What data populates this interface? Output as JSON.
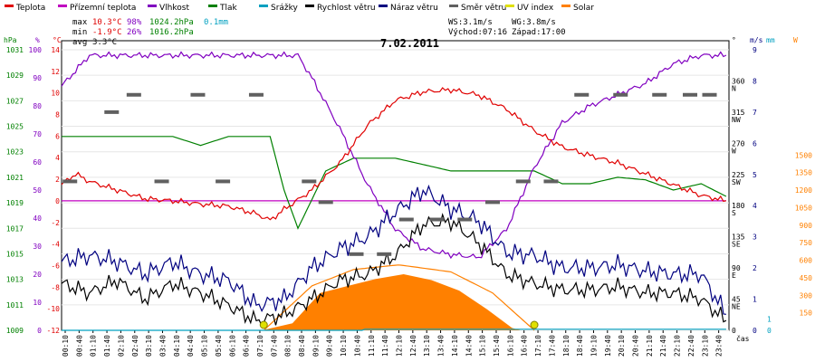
{
  "chart_data": {
    "type": "line",
    "title": "7.02.2011",
    "legend": [
      {
        "name": "Teplota",
        "color": "#e00000"
      },
      {
        "name": "Přízemní teplota",
        "color": "#c000c0"
      },
      {
        "name": "Vlhkost",
        "color": "#8000c0"
      },
      {
        "name": "Tlak",
        "color": "#008000"
      },
      {
        "name": "Srážky",
        "color": "#00a0c0"
      },
      {
        "name": "Rychlost větru",
        "color": "#000000"
      },
      {
        "name": "Náraz větru",
        "color": "#000080"
      },
      {
        "name": "Směr větru",
        "color": "#606060"
      },
      {
        "name": "UV index",
        "color": "#e0e000"
      },
      {
        "name": "Solar",
        "color": "#ff8000"
      }
    ],
    "stats": {
      "max": {
        "label": "max",
        "temp": "10.3°C",
        "hum": "98%",
        "press": "1024.2hPa",
        "rain": "0.1mm"
      },
      "min": {
        "label": "min",
        "temp": "-1.9°C",
        "hum": "26%",
        "press": "1016.2hPa"
      },
      "avg": {
        "label": "avg",
        "temp": "3.3°C"
      },
      "ws": "WS:3.1m/s",
      "wg": "WG:3.8m/s",
      "sunrise": "Východ:07:16",
      "sunset": "Západ:17:00"
    },
    "axes": {
      "hpa": {
        "label": "hPa",
        "ticks": [
          "1031",
          "1029",
          "1027",
          "1025",
          "1023",
          "1021",
          "1019",
          "1017",
          "1015",
          "1013",
          "1011",
          "1009"
        ]
      },
      "pct": {
        "label": "%",
        "ticks": [
          "100",
          "90",
          "80",
          "70",
          "60",
          "50",
          "40",
          "30",
          "20",
          "10",
          "0"
        ]
      },
      "degc": {
        "label": "°C",
        "ticks": [
          "14",
          "12",
          "10",
          "8",
          "6",
          "4",
          "2",
          "0",
          "-2",
          "-4",
          "-6",
          "-8",
          "-10",
          "-12"
        ]
      },
      "deg": {
        "label": "°",
        "ticks": [
          "360",
          "315",
          "270",
          "225",
          "180",
          "135",
          "90",
          "45",
          "0"
        ],
        "dirs": [
          "N",
          "NW",
          "W",
          "SW",
          "S",
          "SE",
          "E",
          "NE",
          ""
        ]
      },
      "ms": {
        "label": "m/s",
        "ticks": [
          "9",
          "8",
          "7",
          "6",
          "5",
          "4",
          "3",
          "2",
          "1",
          "0"
        ]
      },
      "mm": {
        "label": "mm",
        "ticks": [
          "1",
          "0"
        ]
      },
      "wm2": {
        "label": "W",
        "ticks": [
          "1500",
          "1350",
          "1200",
          "1050",
          "900",
          "750",
          "600",
          "450",
          "300",
          "150"
        ]
      },
      "x_label": "čas",
      "x_ticks": [
        "00:10",
        "00:40",
        "01:10",
        "01:40",
        "02:10",
        "02:40",
        "03:10",
        "03:40",
        "04:10",
        "04:40",
        "05:10",
        "05:40",
        "06:10",
        "06:40",
        "07:10",
        "07:40",
        "08:10",
        "08:40",
        "09:10",
        "09:40",
        "10:10",
        "10:40",
        "11:10",
        "11:40",
        "12:10",
        "12:40",
        "13:10",
        "13:40",
        "14:10",
        "14:40",
        "15:10",
        "15:40",
        "16:10",
        "16:40",
        "17:10",
        "17:40",
        "18:10",
        "18:40",
        "19:10",
        "19:40",
        "20:10",
        "20:40",
        "21:10",
        "21:40",
        "22:10",
        "22:40",
        "23:10",
        "23:40"
      ]
    },
    "series_keypoints": {
      "temperature_c": [
        [
          0,
          1.5
        ],
        [
          0.5,
          2.5
        ],
        [
          1,
          1.8
        ],
        [
          2,
          1
        ],
        [
          3,
          0.2
        ],
        [
          4,
          0
        ],
        [
          5,
          -0.3
        ],
        [
          6,
          -0.5
        ],
        [
          7,
          -1.2
        ],
        [
          7.5,
          -1.8
        ],
        [
          8,
          -0.8
        ],
        [
          9,
          1
        ],
        [
          10,
          3.5
        ],
        [
          11,
          7
        ],
        [
          12,
          9.3
        ],
        [
          13,
          10.1
        ],
        [
          14,
          10.3
        ],
        [
          15,
          9.8
        ],
        [
          16,
          8.5
        ],
        [
          17,
          6.5
        ],
        [
          18,
          5
        ],
        [
          19,
          4.2
        ],
        [
          20,
          3.5
        ],
        [
          21,
          2.5
        ],
        [
          22,
          1.5
        ],
        [
          23,
          0.5
        ],
        [
          23.9,
          0
        ]
      ],
      "ground_temp_c": [
        [
          0,
          0
        ],
        [
          23.9,
          0
        ]
      ],
      "humidity_pct": [
        [
          0,
          87
        ],
        [
          1,
          98
        ],
        [
          8.5,
          98
        ],
        [
          9,
          90
        ],
        [
          10,
          72
        ],
        [
          11,
          52
        ],
        [
          12,
          36
        ],
        [
          13,
          29
        ],
        [
          14,
          27
        ],
        [
          15,
          26
        ],
        [
          16,
          36
        ],
        [
          17,
          58
        ],
        [
          18,
          74
        ],
        [
          19,
          80
        ],
        [
          20,
          84
        ],
        [
          21,
          88
        ],
        [
          22,
          95
        ],
        [
          23,
          98
        ],
        [
          23.9,
          98
        ]
      ],
      "pressure_hpa": [
        [
          0,
          1024.2
        ],
        [
          4,
          1024.2
        ],
        [
          5,
          1023.5
        ],
        [
          6,
          1024.2
        ],
        [
          7.5,
          1024.2
        ],
        [
          8,
          1020
        ],
        [
          8.5,
          1017
        ],
        [
          9.5,
          1021.5
        ],
        [
          10.5,
          1022.5
        ],
        [
          12,
          1022.5
        ],
        [
          13,
          1022
        ],
        [
          14,
          1021.5
        ],
        [
          16,
          1021.5
        ],
        [
          17,
          1021.5
        ],
        [
          18,
          1020.5
        ],
        [
          19,
          1020.5
        ],
        [
          20,
          1021
        ],
        [
          21,
          1020.8
        ],
        [
          22,
          1020
        ],
        [
          23,
          1020.5
        ],
        [
          23.9,
          1019.5
        ]
      ],
      "rain_mm": [
        [
          0,
          0
        ],
        [
          10.8,
          0
        ],
        [
          10.8,
          0.1
        ],
        [
          23.9,
          0.1
        ]
      ],
      "wind_speed_ms": [
        [
          0,
          1.5
        ],
        [
          1,
          1.2
        ],
        [
          2,
          1.6
        ],
        [
          3,
          1
        ],
        [
          4,
          1.5
        ],
        [
          5,
          1.2
        ],
        [
          6,
          0.8
        ],
        [
          7,
          0.3
        ],
        [
          8,
          0.5
        ],
        [
          9,
          1
        ],
        [
          10,
          1.6
        ],
        [
          11,
          1.8
        ],
        [
          12,
          2.4
        ],
        [
          13,
          3.4
        ],
        [
          14,
          3.5
        ],
        [
          15,
          2.8
        ],
        [
          16,
          1.8
        ],
        [
          17,
          1.5
        ],
        [
          18,
          1.3
        ],
        [
          19,
          1.3
        ],
        [
          20,
          1.4
        ],
        [
          21,
          1.2
        ],
        [
          22,
          1.2
        ],
        [
          23,
          1
        ],
        [
          23.9,
          0.3
        ]
      ],
      "wind_gust_ms": [
        [
          0,
          2.2
        ],
        [
          1,
          2.4
        ],
        [
          2,
          2.2
        ],
        [
          3,
          1.8
        ],
        [
          4,
          2.2
        ],
        [
          5,
          1.8
        ],
        [
          6,
          1.6
        ],
        [
          7,
          0.8
        ],
        [
          8,
          1
        ],
        [
          9,
          2
        ],
        [
          10,
          2.6
        ],
        [
          11,
          3
        ],
        [
          12,
          3.8
        ],
        [
          13,
          4.5
        ],
        [
          14,
          3.9
        ],
        [
          15,
          3.5
        ],
        [
          16,
          2.5
        ],
        [
          17,
          2.4
        ],
        [
          18,
          2
        ],
        [
          19,
          2
        ],
        [
          20,
          2.1
        ],
        [
          21,
          1.9
        ],
        [
          22,
          1.8
        ],
        [
          23,
          1.8
        ],
        [
          23.9,
          0.5
        ]
      ],
      "wind_dir_deg": [
        [
          0.3,
          215
        ],
        [
          1.8,
          315
        ],
        [
          2.6,
          340
        ],
        [
          3.6,
          215
        ],
        [
          4.9,
          340
        ],
        [
          5.8,
          215
        ],
        [
          7,
          340
        ],
        [
          8.9,
          215
        ],
        [
          9.5,
          185
        ],
        [
          10.6,
          110
        ],
        [
          11.6,
          110
        ],
        [
          12.4,
          160
        ],
        [
          13.5,
          160
        ],
        [
          14.5,
          160
        ],
        [
          15.5,
          185
        ],
        [
          16.6,
          215
        ],
        [
          17.6,
          215
        ],
        [
          18.7,
          340
        ],
        [
          20.1,
          340
        ],
        [
          21.5,
          340
        ],
        [
          22.6,
          340
        ],
        [
          23.3,
          340
        ]
      ],
      "solar_wm2": [
        [
          7.2,
          0
        ],
        [
          8.3,
          60
        ],
        [
          9.3,
          320
        ],
        [
          10.3,
          380
        ],
        [
          11.3,
          440
        ],
        [
          12.3,
          480
        ],
        [
          13.3,
          430
        ],
        [
          14.3,
          340
        ],
        [
          15.3,
          180
        ],
        [
          16.2,
          20
        ],
        [
          16.5,
          0
        ]
      ],
      "solar_theoretical_wm2": [
        [
          7.27,
          0
        ],
        [
          9,
          380
        ],
        [
          10.5,
          520
        ],
        [
          12.13,
          560
        ],
        [
          14,
          500
        ],
        [
          15.5,
          320
        ],
        [
          17,
          0
        ]
      ],
      "uv_markers_h": [
        7.27,
        17.0
      ]
    }
  }
}
